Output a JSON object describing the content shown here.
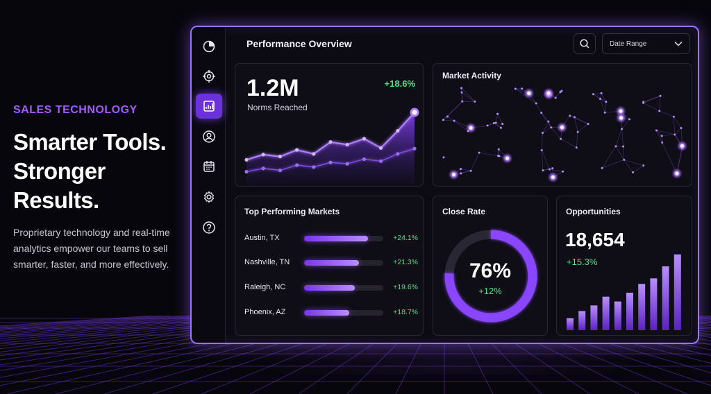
{
  "hero": {
    "eyebrow": "SALES TECHNOLOGY",
    "headline_line1": "Smarter Tools.",
    "headline_line2": "Stronger Results.",
    "body": "Proprietary technology and real-time analytics empower our teams to sell smarter, faster, and more effectively."
  },
  "sidebar": {
    "items": [
      {
        "icon": "pie-chart-icon",
        "active": false
      },
      {
        "icon": "target-icon",
        "active": false
      },
      {
        "icon": "analytics-icon",
        "active": true
      },
      {
        "icon": "user-icon",
        "active": false
      },
      {
        "icon": "calendar-icon",
        "active": false
      },
      {
        "icon": "gear-icon",
        "active": false
      },
      {
        "icon": "help-icon",
        "active": false
      }
    ]
  },
  "header": {
    "title": "Performance Overview",
    "search_icon": "search-icon",
    "date_range_label": "Date Range"
  },
  "norms_card": {
    "value": "1.2M",
    "label": "Norms Reached",
    "delta": "+18.6%"
  },
  "market_activity": {
    "title": "Market Activity"
  },
  "top_markets": {
    "title": "Top Performing Markets",
    "rows": [
      {
        "name": "Austin, TX",
        "fill": 0.81,
        "delta": "+24.1%"
      },
      {
        "name": "Nashville, TN",
        "fill": 0.69,
        "delta": "+21.3%"
      },
      {
        "name": "Raleigh, NC",
        "fill": 0.64,
        "delta": "+19.6%"
      },
      {
        "name": "Phoenix, AZ",
        "fill": 0.57,
        "delta": "+18.7%"
      }
    ]
  },
  "close_rate": {
    "title": "Close Rate",
    "value": "76%",
    "delta": "+12%",
    "fraction": 0.76
  },
  "opportunities": {
    "title": "Opportunities",
    "value": "18,654",
    "delta": "+15.3%"
  },
  "colors": {
    "accent": "#8b4dff",
    "positive": "#4ee28b",
    "border_glow": "#9c73ff"
  },
  "chart_data": [
    {
      "type": "area",
      "title": "",
      "series": [
        {
          "values": [
            0.28,
            0.36,
            0.33,
            0.43,
            0.37,
            0.55,
            0.51,
            0.6,
            0.46,
            0.72,
            1.0
          ]
        },
        {
          "values": [
            0.1,
            0.15,
            0.12,
            0.2,
            0.17,
            0.24,
            0.22,
            0.29,
            0.26,
            0.37,
            0.45
          ]
        }
      ],
      "ylim": [
        0,
        1
      ]
    },
    {
      "type": "bar",
      "title": "",
      "values": [
        0.15,
        0.24,
        0.31,
        0.42,
        0.36,
        0.47,
        0.58,
        0.65,
        0.8,
        0.95
      ]
    }
  ]
}
